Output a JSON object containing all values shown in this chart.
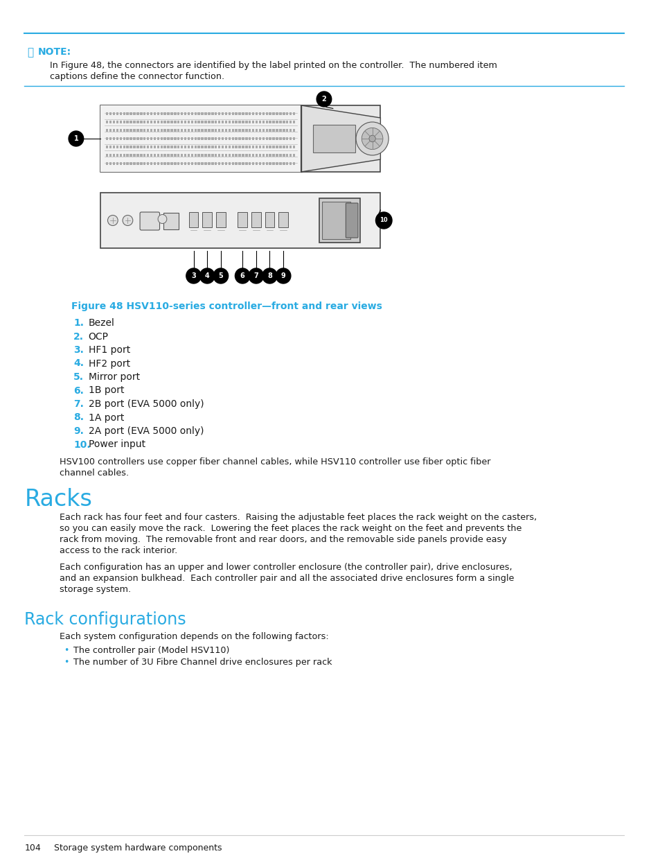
{
  "bg_color": "#ffffff",
  "cyan_color": "#29ABE2",
  "black": "#1a1a1a",
  "note_text1": "In Figure 48, the connectors are identified by the label printed on the controller.  The numbered item",
  "note_text2": "captions define the connector function.",
  "fig_caption": "Figure 48 HSV110-series controller—front and rear views",
  "items": [
    {
      "num": "1.",
      "text": "Bezel"
    },
    {
      "num": "2.",
      "text": "OCP"
    },
    {
      "num": "3.",
      "text": "HF1 port"
    },
    {
      "num": "4.",
      "text": "HF2 port"
    },
    {
      "num": "5.",
      "text": "Mirror port"
    },
    {
      "num": "6.",
      "text": "1B port"
    },
    {
      "num": "7.",
      "text": "2B port (EVA 5000 only)"
    },
    {
      "num": "8.",
      "text": "1A port"
    },
    {
      "num": "9.",
      "text": "2A port (EVA 5000 only)"
    },
    {
      "num": "10.",
      "text": "Power input"
    }
  ],
  "hsv_note1": "HSV100 controllers use copper fiber channel cables, while HSV110 controller use fiber optic fiber",
  "hsv_note2": "channel cables.",
  "racks_title": "Racks",
  "racks_para1a": "Each rack has four feet and four casters.  Raising the adjustable feet places the rack weight on the casters,",
  "racks_para1b": "so you can easily move the rack.  Lowering the feet places the rack weight on the feet and prevents the",
  "racks_para1c": "rack from moving.  The removable front and rear doors, and the removable side panels provide easy",
  "racks_para1d": "access to the rack interior.",
  "racks_para2a": "Each configuration has an upper and lower controller enclosure (the controller pair), drive enclosures,",
  "racks_para2b": "and an expansion bulkhead.  Each controller pair and all the associated drive enclosures form a single",
  "racks_para2c": "storage system.",
  "rack_config_title": "Rack configurations",
  "rack_config_intro": "Each system configuration depends on the following factors:",
  "bullets": [
    "The controller pair (Model HSV110)",
    "The number of 3U Fibre Channel drive enclosures per rack"
  ],
  "footer_page": "104",
  "footer_text": "Storage system hardware components"
}
